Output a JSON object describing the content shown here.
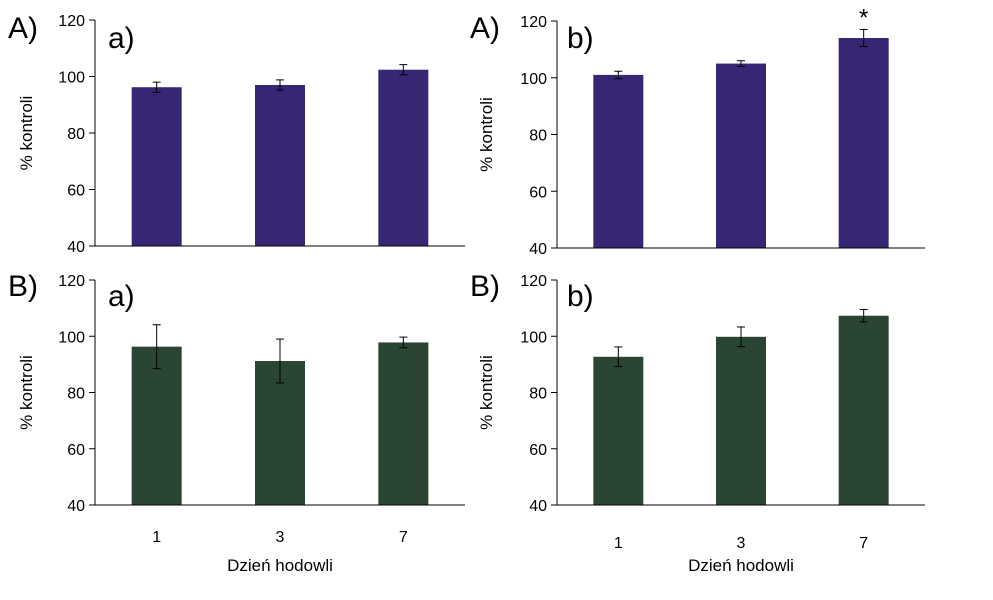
{
  "chart_data": [
    {
      "type": "bar",
      "panel_letter": "A)",
      "sub_letter": "a)",
      "categories": [
        "1",
        "3",
        "7"
      ],
      "values": [
        96.2,
        97.0,
        102.4
      ],
      "errors": [
        1.8,
        1.8,
        1.8
      ],
      "ylabel": "% kontroli",
      "xlabel": "",
      "yticks": [
        "40",
        "60",
        "80",
        "100",
        "120"
      ],
      "ylim": [
        40,
        120
      ],
      "annotations": [
        "",
        "",
        ""
      ],
      "bar_color": "#362673",
      "show_xticks": false
    },
    {
      "type": "bar",
      "panel_letter": "A)",
      "sub_letter": "b)",
      "categories": [
        "1",
        "3",
        "7"
      ],
      "values": [
        101.0,
        105.0,
        114.0
      ],
      "errors": [
        1.3,
        1.0,
        3.0
      ],
      "ylabel": "% kontroli",
      "xlabel": "",
      "yticks": [
        "40",
        "60",
        "80",
        "100",
        "120"
      ],
      "ylim": [
        40,
        120
      ],
      "annotations": [
        "",
        "",
        "*"
      ],
      "bar_color": "#362673",
      "show_xticks": false
    },
    {
      "type": "bar",
      "panel_letter": "B)",
      "sub_letter": "a)",
      "categories": [
        "1",
        "3",
        "7"
      ],
      "values": [
        96.3,
        91.2,
        97.8
      ],
      "errors": [
        7.8,
        7.8,
        1.9
      ],
      "ylabel": "% kontroli",
      "xlabel": "Dzień hodowli",
      "yticks": [
        "40",
        "60",
        "80",
        "100",
        "120"
      ],
      "ylim": [
        40,
        120
      ],
      "annotations": [
        "",
        "",
        ""
      ],
      "bar_color": "#2b4534",
      "show_xticks": true
    },
    {
      "type": "bar",
      "panel_letter": "B)",
      "sub_letter": "b)",
      "categories": [
        "1",
        "3",
        "7"
      ],
      "values": [
        92.7,
        99.8,
        107.3
      ],
      "errors": [
        3.5,
        3.5,
        2.2
      ],
      "ylabel": "% kontroli",
      "xlabel": "Dzień hodowli",
      "yticks": [
        "40",
        "60",
        "80",
        "100",
        "120"
      ],
      "ylim": [
        40,
        120
      ],
      "annotations": [
        "",
        "",
        ""
      ],
      "bar_color": "#2b4534",
      "show_xticks": true
    }
  ]
}
